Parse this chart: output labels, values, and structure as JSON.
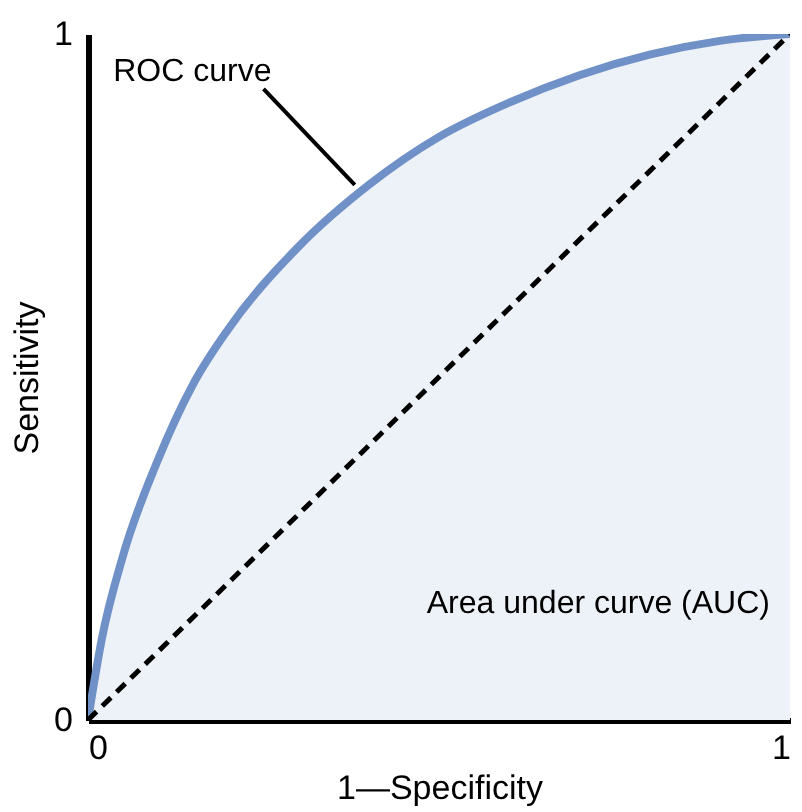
{
  "chart_data": {
    "type": "line",
    "xlabel": "1—Specificity",
    "ylabel": "Sensitivity",
    "xlim": [
      0,
      1
    ],
    "ylim": [
      0,
      1
    ],
    "xticks": [
      0,
      1
    ],
    "yticks": [
      0,
      1
    ],
    "grid": false,
    "series": [
      {
        "color": "#7090c8",
        "x": [
          0,
          0.02,
          0.05,
          0.1,
          0.15,
          0.2,
          0.3,
          0.4,
          0.5,
          0.6,
          0.7,
          0.8,
          0.9,
          1
        ],
        "values": [
          0,
          0.12,
          0.24,
          0.38,
          0.49,
          0.57,
          0.69,
          0.78,
          0.85,
          0.9,
          0.94,
          0.97,
          0.99,
          1
        ],
        "lower": [
          0,
          0,
          0,
          0,
          0,
          0,
          0,
          0,
          0,
          0,
          0,
          0,
          0,
          0
        ],
        "upper": [
          0,
          0.12,
          0.24,
          0.38,
          0.49,
          0.57,
          0.69,
          0.78,
          0.85,
          0.9,
          0.94,
          0.97,
          0.99,
          1
        ]
      },
      {
        "color": "#000000",
        "line_style": "dashed",
        "x": [
          0,
          1
        ],
        "values": [
          0,
          1
        ]
      }
    ],
    "annotations": [
      {
        "text": "ROC curve",
        "x": 0.38,
        "y": 0.78
      },
      "Area under curve (AUC)"
    ]
  }
}
